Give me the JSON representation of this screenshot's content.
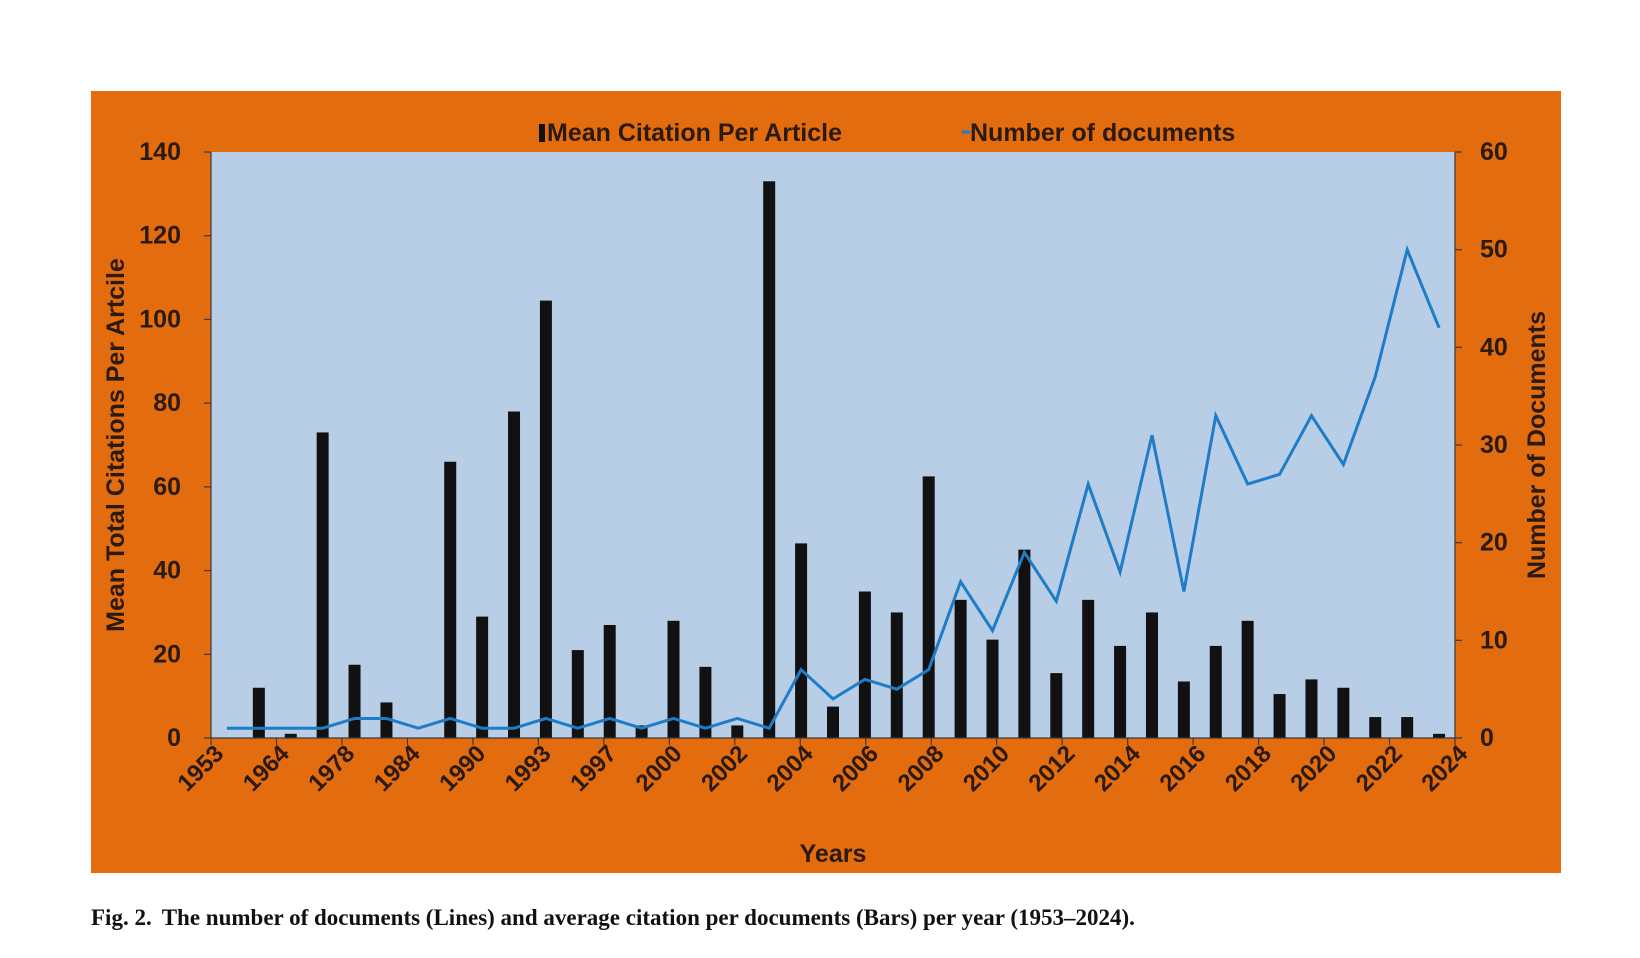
{
  "caption": {
    "label": "Fig. 2.",
    "text": "The number of documents (Lines) and average citation per documents (Bars) per year (1953–2024)."
  },
  "colors": {
    "frame": "#e36c0f",
    "plot_bg": "#b8cee6",
    "bar": "#111111",
    "line": "#1f7cc6",
    "axis_text": "#2a1a10"
  },
  "chart_data": {
    "type": "bar",
    "title": "",
    "xlabel": "Years",
    "ylabel": "Mean Total Citations Per Artcile",
    "y2label": "Number of Documents",
    "ylim": [
      0,
      140
    ],
    "y2lim": [
      0,
      60
    ],
    "yticks": [
      0,
      20,
      40,
      60,
      80,
      100,
      120,
      140
    ],
    "y2ticks": [
      0,
      10,
      20,
      30,
      40,
      50,
      60
    ],
    "grid": false,
    "legend_position": "top",
    "xtick_labels": [
      "1953",
      "1964",
      "1978",
      "1984",
      "1990",
      "1993",
      "1997",
      "2000",
      "2002",
      "2004",
      "2006",
      "2008",
      "2010",
      "2012",
      "2014",
      "2016",
      "2018",
      "2020",
      "2022",
      "2024"
    ],
    "series": [
      {
        "name": "Mean Citation Per Article",
        "type": "bar",
        "axis": "left",
        "values": [
          0,
          12,
          1,
          73,
          17.5,
          8.5,
          0,
          66,
          29,
          78,
          104.5,
          21,
          27,
          3,
          28,
          17,
          3,
          133,
          46.5,
          7.5,
          35,
          30,
          62.5,
          33,
          23.5,
          45,
          15.5,
          33,
          22,
          30,
          13.5,
          22,
          28,
          10.5,
          14,
          12,
          5,
          5,
          1
        ]
      },
      {
        "name": "Number of documents",
        "type": "line",
        "axis": "right",
        "values": [
          1,
          1,
          1,
          1,
          2,
          2,
          1,
          2,
          1,
          1,
          2,
          1,
          2,
          1,
          2,
          1,
          2,
          1,
          7,
          4,
          6,
          5,
          7,
          16,
          11,
          19,
          14,
          26,
          17,
          31,
          15,
          33,
          26,
          27,
          33,
          28,
          37,
          50,
          42
        ]
      }
    ]
  }
}
